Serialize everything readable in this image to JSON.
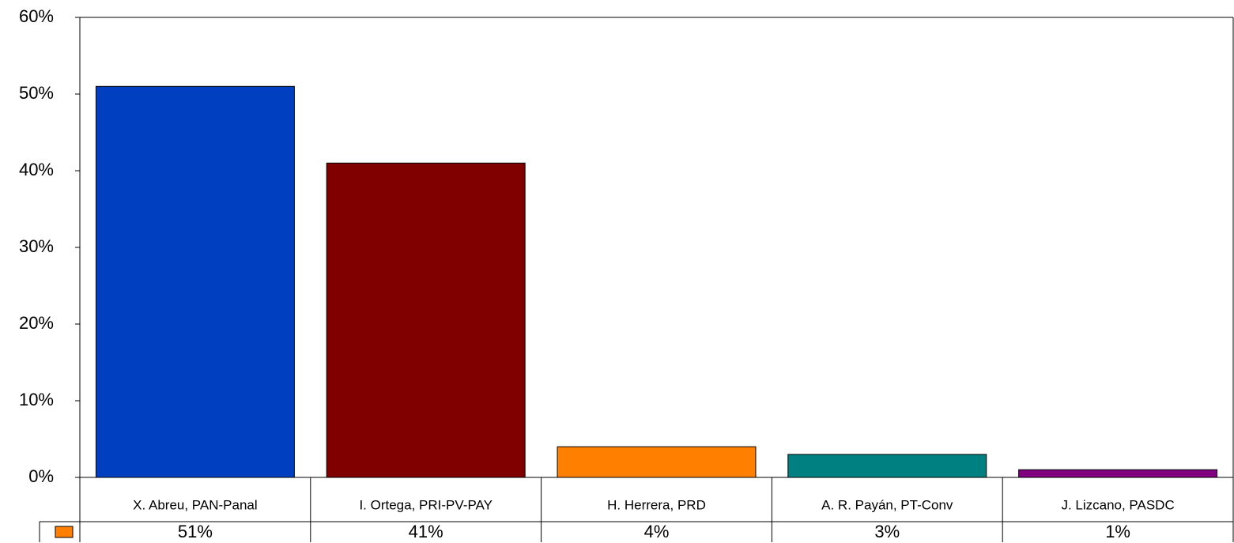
{
  "chart_data": {
    "type": "bar",
    "categories": [
      "X. Abreu, PAN-Panal",
      "I. Ortega, PRI-PV-PAY",
      "H. Herrera, PRD",
      "A. R. Payán, PT-Conv",
      "J. Lizcano, PASDC"
    ],
    "values": [
      51,
      41,
      4,
      3,
      1
    ],
    "value_labels": [
      "51%",
      "41%",
      "4%",
      "3%",
      "1%"
    ],
    "colors": [
      "#0040c0",
      "#800000",
      "#ff8000",
      "#008080",
      "#800080"
    ],
    "legend_swatch_color": "#ff8000",
    "ylim": [
      0,
      60
    ],
    "yticks": [
      {
        "value": 0,
        "label": "0%"
      },
      {
        "value": 10,
        "label": "10%"
      },
      {
        "value": 20,
        "label": "20%"
      },
      {
        "value": 30,
        "label": "30%"
      },
      {
        "value": 40,
        "label": "40%"
      },
      {
        "value": 50,
        "label": "50%"
      },
      {
        "value": 60,
        "label": "60%"
      }
    ],
    "grid": false
  }
}
